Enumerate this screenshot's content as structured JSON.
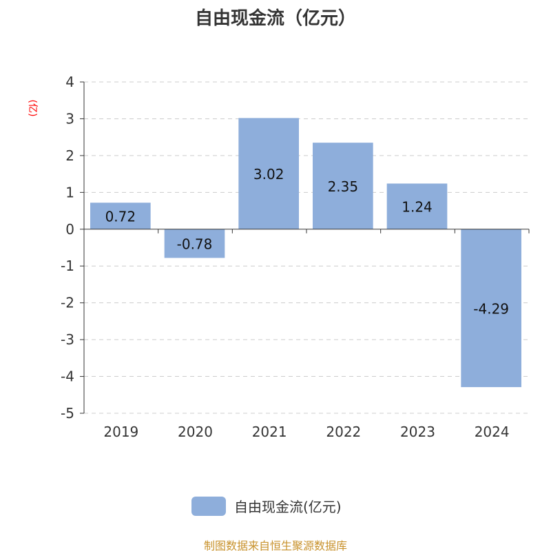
{
  "title": "自由现金流（亿元）",
  "footer": "制图数据来自恒生聚源数据库",
  "colors": {
    "bar": "#8eaedb",
    "axis": "#333333",
    "grid": "#cccccc",
    "ylabel": "#ff0000",
    "footer": "#c8922c"
  },
  "chart_data": {
    "type": "bar",
    "title": "自由现金流（亿元）",
    "ylabel": "(亿)",
    "xlabel": "",
    "categories": [
      "2019",
      "2020",
      "2021",
      "2022",
      "2023",
      "2024"
    ],
    "series": [
      {
        "name": "自由现金流(亿元)",
        "values": [
          0.72,
          -0.78,
          3.02,
          2.35,
          1.24,
          -4.29
        ]
      }
    ],
    "data_labels": [
      "0.72",
      "-0.78",
      "3.02",
      "2.35",
      "1.24",
      "-4.29"
    ],
    "ylim": [
      -5,
      4
    ],
    "yticks": [
      "4",
      "3",
      "2",
      "1",
      "0",
      "-1",
      "-2",
      "-3",
      "-4",
      "-5"
    ],
    "grid": true,
    "legend": "bottom"
  }
}
